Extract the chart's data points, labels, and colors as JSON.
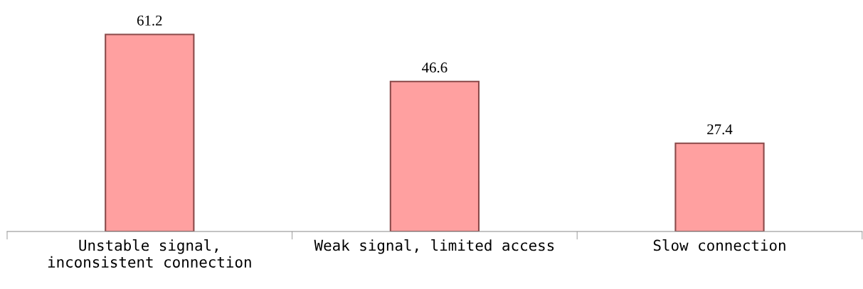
{
  "chart_data": {
    "type": "bar",
    "categories": [
      "Unstable signal,\ninconsistent connection",
      "Weak signal, limited access",
      "Slow connection"
    ],
    "values": [
      61.2,
      46.6,
      27.4
    ],
    "color": "#ffa0a0",
    "data_labels": true,
    "grid": false,
    "legend": false,
    "tick_labels": "x"
  }
}
